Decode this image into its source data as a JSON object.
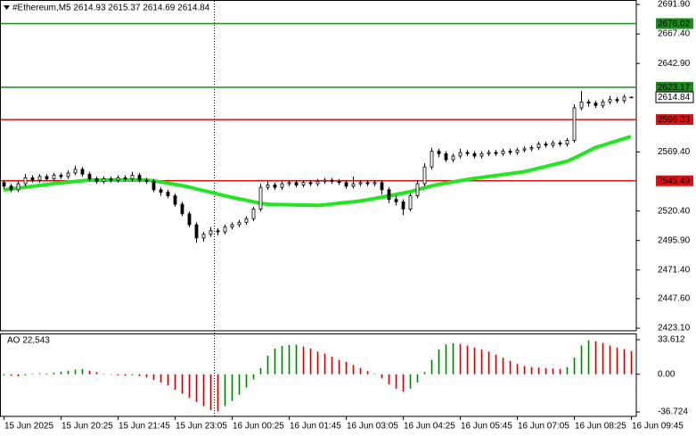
{
  "chart_data": [
    {
      "type": "candlestick",
      "title": "#Ethereum,M5 2614.93 2615.37 2614.69 2614.84",
      "categories": [
        "15 Jun 2025",
        null,
        null,
        null,
        null,
        null,
        null,
        null,
        "15 Jun 20:25",
        null,
        null,
        null,
        null,
        null,
        null,
        null,
        "15 Jun 21:45",
        null,
        null,
        null,
        null,
        null,
        null,
        null,
        "15 Jun 23:05",
        null,
        null,
        null,
        null,
        null,
        null,
        null,
        "16 Jun 00:25",
        null,
        null,
        null,
        null,
        null,
        null,
        null,
        "16 Jun 01:45",
        null,
        null,
        null,
        null,
        null,
        null,
        null,
        "16 Jun 03:05",
        null,
        null,
        null,
        null,
        null,
        null,
        null,
        "16 Jun 04:25",
        null,
        null,
        null,
        null,
        null,
        null,
        null,
        "16 Jun 05:45",
        null,
        null,
        null,
        null,
        null,
        null,
        null,
        "16 Jun 07:05",
        null,
        null,
        null,
        null,
        null,
        null,
        null,
        "16 Jun 08:25",
        null,
        null,
        null,
        null,
        null,
        null,
        null,
        "16 Jun 09:45"
      ],
      "open": [
        2544,
        2541,
        2538,
        2543,
        2548,
        2546,
        2549,
        2547,
        2550,
        2549,
        2552,
        2555,
        2551,
        2547,
        2545,
        2547,
        2546,
        2548,
        2547,
        2550,
        2546,
        2545,
        2538,
        2536,
        2533,
        2526,
        2518,
        2509,
        2498,
        2501,
        2504,
        2503,
        2507,
        2509,
        2511,
        2514,
        2522,
        2540,
        2542,
        2540,
        2543,
        2544,
        2542,
        2544,
        2543,
        2545,
        2546,
        2545,
        2544,
        2541,
        2543,
        2544,
        2543,
        2544,
        2538,
        2530,
        2528,
        2522,
        2533,
        2543,
        2557,
        2570,
        2568,
        2563,
        2566,
        2569,
        2568,
        2566,
        2568,
        2569,
        2568,
        2570,
        2569,
        2571,
        2572,
        2573,
        2576,
        2575,
        2577,
        2576,
        2579,
        2606,
        2611,
        2610,
        2608,
        2611,
        2613,
        2612,
        2614.93
      ],
      "high": [
        2546,
        2543,
        2545,
        2551,
        2550,
        2551,
        2551,
        2552,
        2552,
        2554,
        2558,
        2557,
        2553,
        2549,
        2549,
        2549,
        2550,
        2550,
        2553,
        2552,
        2548,
        2547,
        2540,
        2538,
        2535,
        2528,
        2520,
        2511,
        2503,
        2507,
        2506,
        2509,
        2511,
        2513,
        2516,
        2524,
        2543,
        2545,
        2544,
        2545,
        2546,
        2546,
        2546,
        2546,
        2547,
        2548,
        2548,
        2547,
        2546,
        2549,
        2546,
        2546,
        2546,
        2546,
        2540,
        2533,
        2530,
        2535,
        2546,
        2560,
        2573,
        2572,
        2570,
        2568,
        2572,
        2571,
        2570,
        2570,
        2571,
        2571,
        2572,
        2572,
        2573,
        2574,
        2575,
        2578,
        2578,
        2579,
        2579,
        2581,
        2609,
        2620,
        2613,
        2612,
        2613,
        2616,
        2615,
        2617,
        2615.37
      ],
      "low": [
        2539,
        2536,
        2536,
        2541,
        2544,
        2544,
        2545,
        2545,
        2547,
        2547,
        2550,
        2549,
        2545,
        2543,
        2543,
        2544,
        2544,
        2545,
        2545,
        2544,
        2543,
        2536,
        2533,
        2531,
        2524,
        2516,
        2507,
        2494,
        2495,
        2499,
        2500,
        2501,
        2505,
        2507,
        2509,
        2512,
        2520,
        2538,
        2538,
        2538,
        2541,
        2540,
        2540,
        2541,
        2541,
        2543,
        2543,
        2542,
        2539,
        2539,
        2541,
        2541,
        2541,
        2534,
        2527,
        2525,
        2517,
        2520,
        2531,
        2541,
        2555,
        2565,
        2561,
        2561,
        2564,
        2566,
        2564,
        2564,
        2566,
        2566,
        2566,
        2567,
        2567,
        2569,
        2570,
        2571,
        2573,
        2573,
        2574,
        2574,
        2577,
        2604,
        2607,
        2606,
        2606,
        2609,
        2610,
        2610,
        2614.69
      ],
      "close": [
        2541,
        2538,
        2543,
        2548,
        2546,
        2549,
        2547,
        2550,
        2549,
        2552,
        2555,
        2551,
        2547,
        2545,
        2547,
        2546,
        2548,
        2547,
        2550,
        2546,
        2545,
        2538,
        2536,
        2533,
        2526,
        2518,
        2509,
        2498,
        2501,
        2504,
        2503,
        2507,
        2509,
        2511,
        2514,
        2522,
        2540,
        2542,
        2540,
        2543,
        2544,
        2542,
        2544,
        2543,
        2545,
        2546,
        2545,
        2544,
        2541,
        2543,
        2544,
        2543,
        2544,
        2538,
        2530,
        2528,
        2522,
        2533,
        2543,
        2557,
        2570,
        2568,
        2563,
        2566,
        2569,
        2568,
        2566,
        2568,
        2569,
        2568,
        2570,
        2569,
        2571,
        2572,
        2573,
        2576,
        2575,
        2577,
        2576,
        2579,
        2606,
        2611,
        2610,
        2608,
        2611,
        2613,
        2612,
        2615,
        2614.84
      ],
      "overlay_line": {
        "color": "#22e622",
        "values": [
          2538,
          2538.6,
          2539.4,
          2540.1,
          2540.9,
          2541.6,
          2542.3,
          2543.1,
          2543.8,
          2544.4,
          2544.9,
          2545.5,
          2546,
          2546,
          2546,
          2546,
          2546,
          2546,
          2546,
          2546,
          2546,
          2545.5,
          2544.5,
          2543.5,
          2542.5,
          2541.5,
          2540.3,
          2538.8,
          2537.4,
          2536,
          2534.5,
          2533.1,
          2531.7,
          2530.5,
          2529.3,
          2528.1,
          2526.9,
          2526,
          2525.8,
          2525.7,
          2525.6,
          2525.4,
          2525.3,
          2525.2,
          2525,
          2525.5,
          2526.1,
          2526.8,
          2527.4,
          2528,
          2528.7,
          2529.6,
          2530.7,
          2531.8,
          2532.9,
          2534,
          2535.2,
          2536.4,
          2538,
          2539.6,
          2541.2,
          2542.5,
          2543.5,
          2544.5,
          2545.5,
          2546.5,
          2547.4,
          2548.2,
          2549,
          2549.8,
          2550.6,
          2551.4,
          2552.2,
          2553,
          2554.4,
          2555.9,
          2557.3,
          2558.8,
          2560.2,
          2561.6,
          2564.2,
          2567.1,
          2570.1,
          2573,
          2574.9,
          2576.7,
          2578.6,
          2580.4,
          2582.2
        ]
      },
      "levels": [
        {
          "value": 2676.02,
          "color": "#1a8a1a"
        },
        {
          "value": 2623.17,
          "color": "#1a8a1a"
        },
        {
          "value": 2596.33,
          "color": "#e01010"
        },
        {
          "value": 2545.49,
          "color": "#e01010"
        }
      ],
      "bull_color": "#ffffff",
      "bear_color": "#000000",
      "outline_color": "#000000",
      "ylim": [
        2420.9,
        2695.6
      ],
      "yticks": [
        {
          "value": 2691.9,
          "label": "2691.90"
        },
        {
          "value": 2667.4,
          "label": "2667.40"
        },
        {
          "value": 2642.9,
          "label": "2642.90"
        },
        {
          "value": 2569.4,
          "label": "2569.40"
        },
        {
          "value": 2520.4,
          "label": "2520.40"
        },
        {
          "value": 2495.9,
          "label": "2495.90"
        },
        {
          "value": 2471.4,
          "label": "2471.40"
        },
        {
          "value": 2447.6,
          "label": "2447.60"
        },
        {
          "value": 2423.1,
          "label": "2423.10"
        }
      ],
      "grid": false
    },
    {
      "type": "oscillator",
      "title": "AO 22,543",
      "values": [
        -1,
        -1.5,
        -2,
        -1,
        0.5,
        1,
        0.8,
        1.5,
        2.5,
        3.5,
        4.5,
        5,
        3.5,
        2,
        0.5,
        -0.5,
        -1,
        -1.5,
        -1,
        -1.8,
        -3,
        -5.5,
        -8,
        -11,
        -15,
        -19,
        -23,
        -27,
        -31,
        -35,
        -36.2,
        -31,
        -26,
        -20,
        -13,
        -5,
        6,
        18,
        25,
        27.5,
        28.5,
        28.8,
        27,
        25,
        22,
        20,
        17,
        14,
        12,
        9,
        6,
        3,
        0.5,
        -4,
        -10,
        -14,
        -17,
        -14,
        -8,
        2,
        14,
        24,
        29,
        30,
        29.5,
        28,
        26,
        24,
        22,
        19,
        16,
        13,
        10,
        8,
        7,
        6.5,
        6,
        5.5,
        5,
        7,
        16,
        28,
        33,
        32,
        30.5,
        28,
        26,
        24.5,
        22.543
      ],
      "up_color": "#008000",
      "down_color": "#d00000",
      "ylim": [
        -40.2,
        37.96
      ],
      "yticks": [
        33.612,
        {
          "value": 0,
          "label": "0.00"
        },
        -36.724
      ]
    }
  ]
}
